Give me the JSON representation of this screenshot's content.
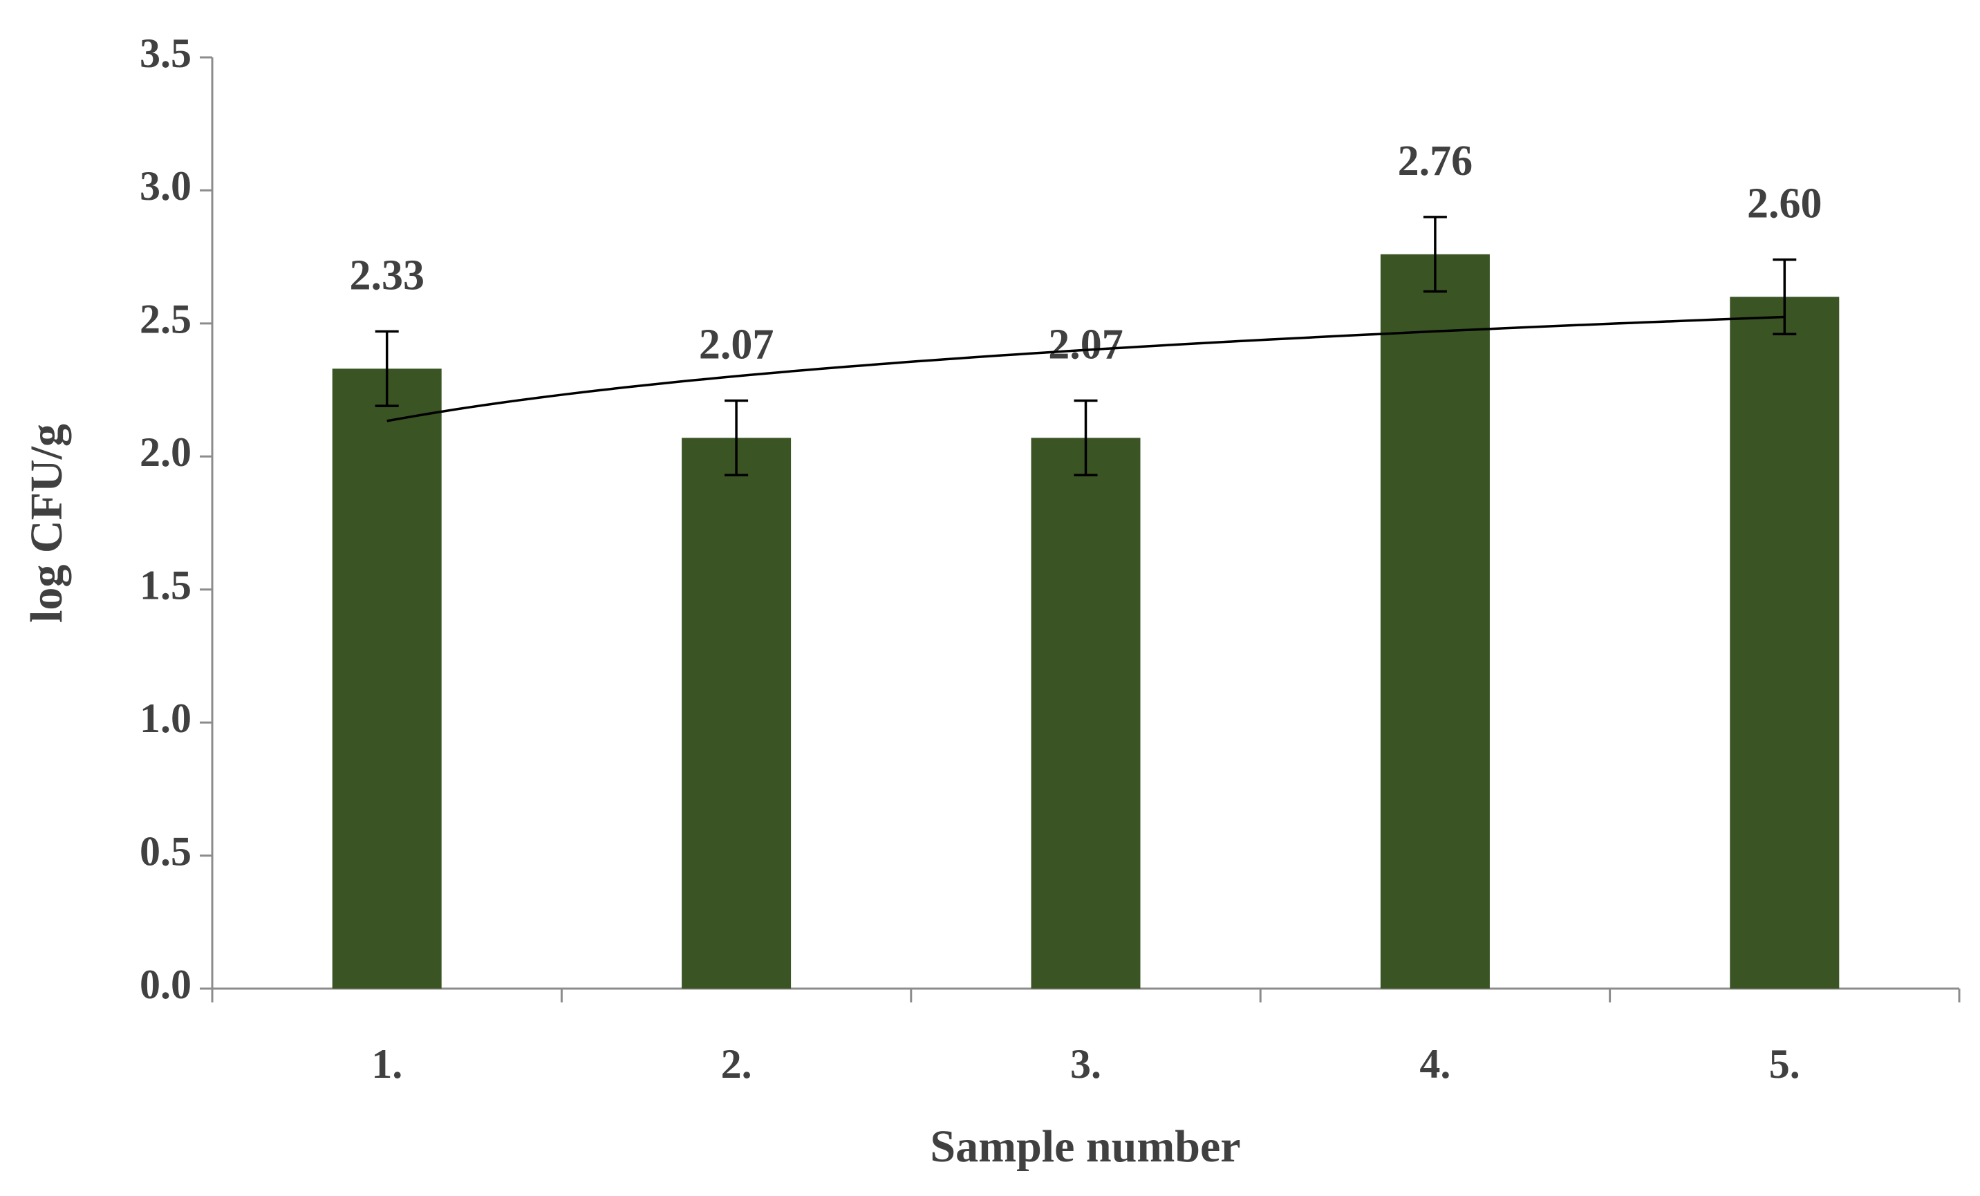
{
  "chart_data": {
    "type": "bar",
    "x_label": "Sample number",
    "y_label": "log CFU/g",
    "categories": [
      "1.",
      "2.",
      "3.",
      "4.",
      "5."
    ],
    "values": [
      2.33,
      2.07,
      2.07,
      2.76,
      2.6
    ],
    "value_labels": [
      "2.33",
      "2.07",
      "2.07",
      "2.76",
      "2.60"
    ],
    "errors": [
      0.14,
      0.14,
      0.14,
      0.14,
      0.14
    ],
    "color": "#3a5424",
    "trendline": "logarithmic",
    "ylim": [
      0,
      3.5
    ],
    "yticks": [
      {
        "value": 0,
        "label": "0.0"
      },
      0.5,
      {
        "value": 1,
        "label": "1.0"
      },
      1.5,
      {
        "value": 2,
        "label": "2.0"
      },
      2.5,
      {
        "value": 3,
        "label": "3.0"
      },
      3.5
    ],
    "grid": false
  }
}
